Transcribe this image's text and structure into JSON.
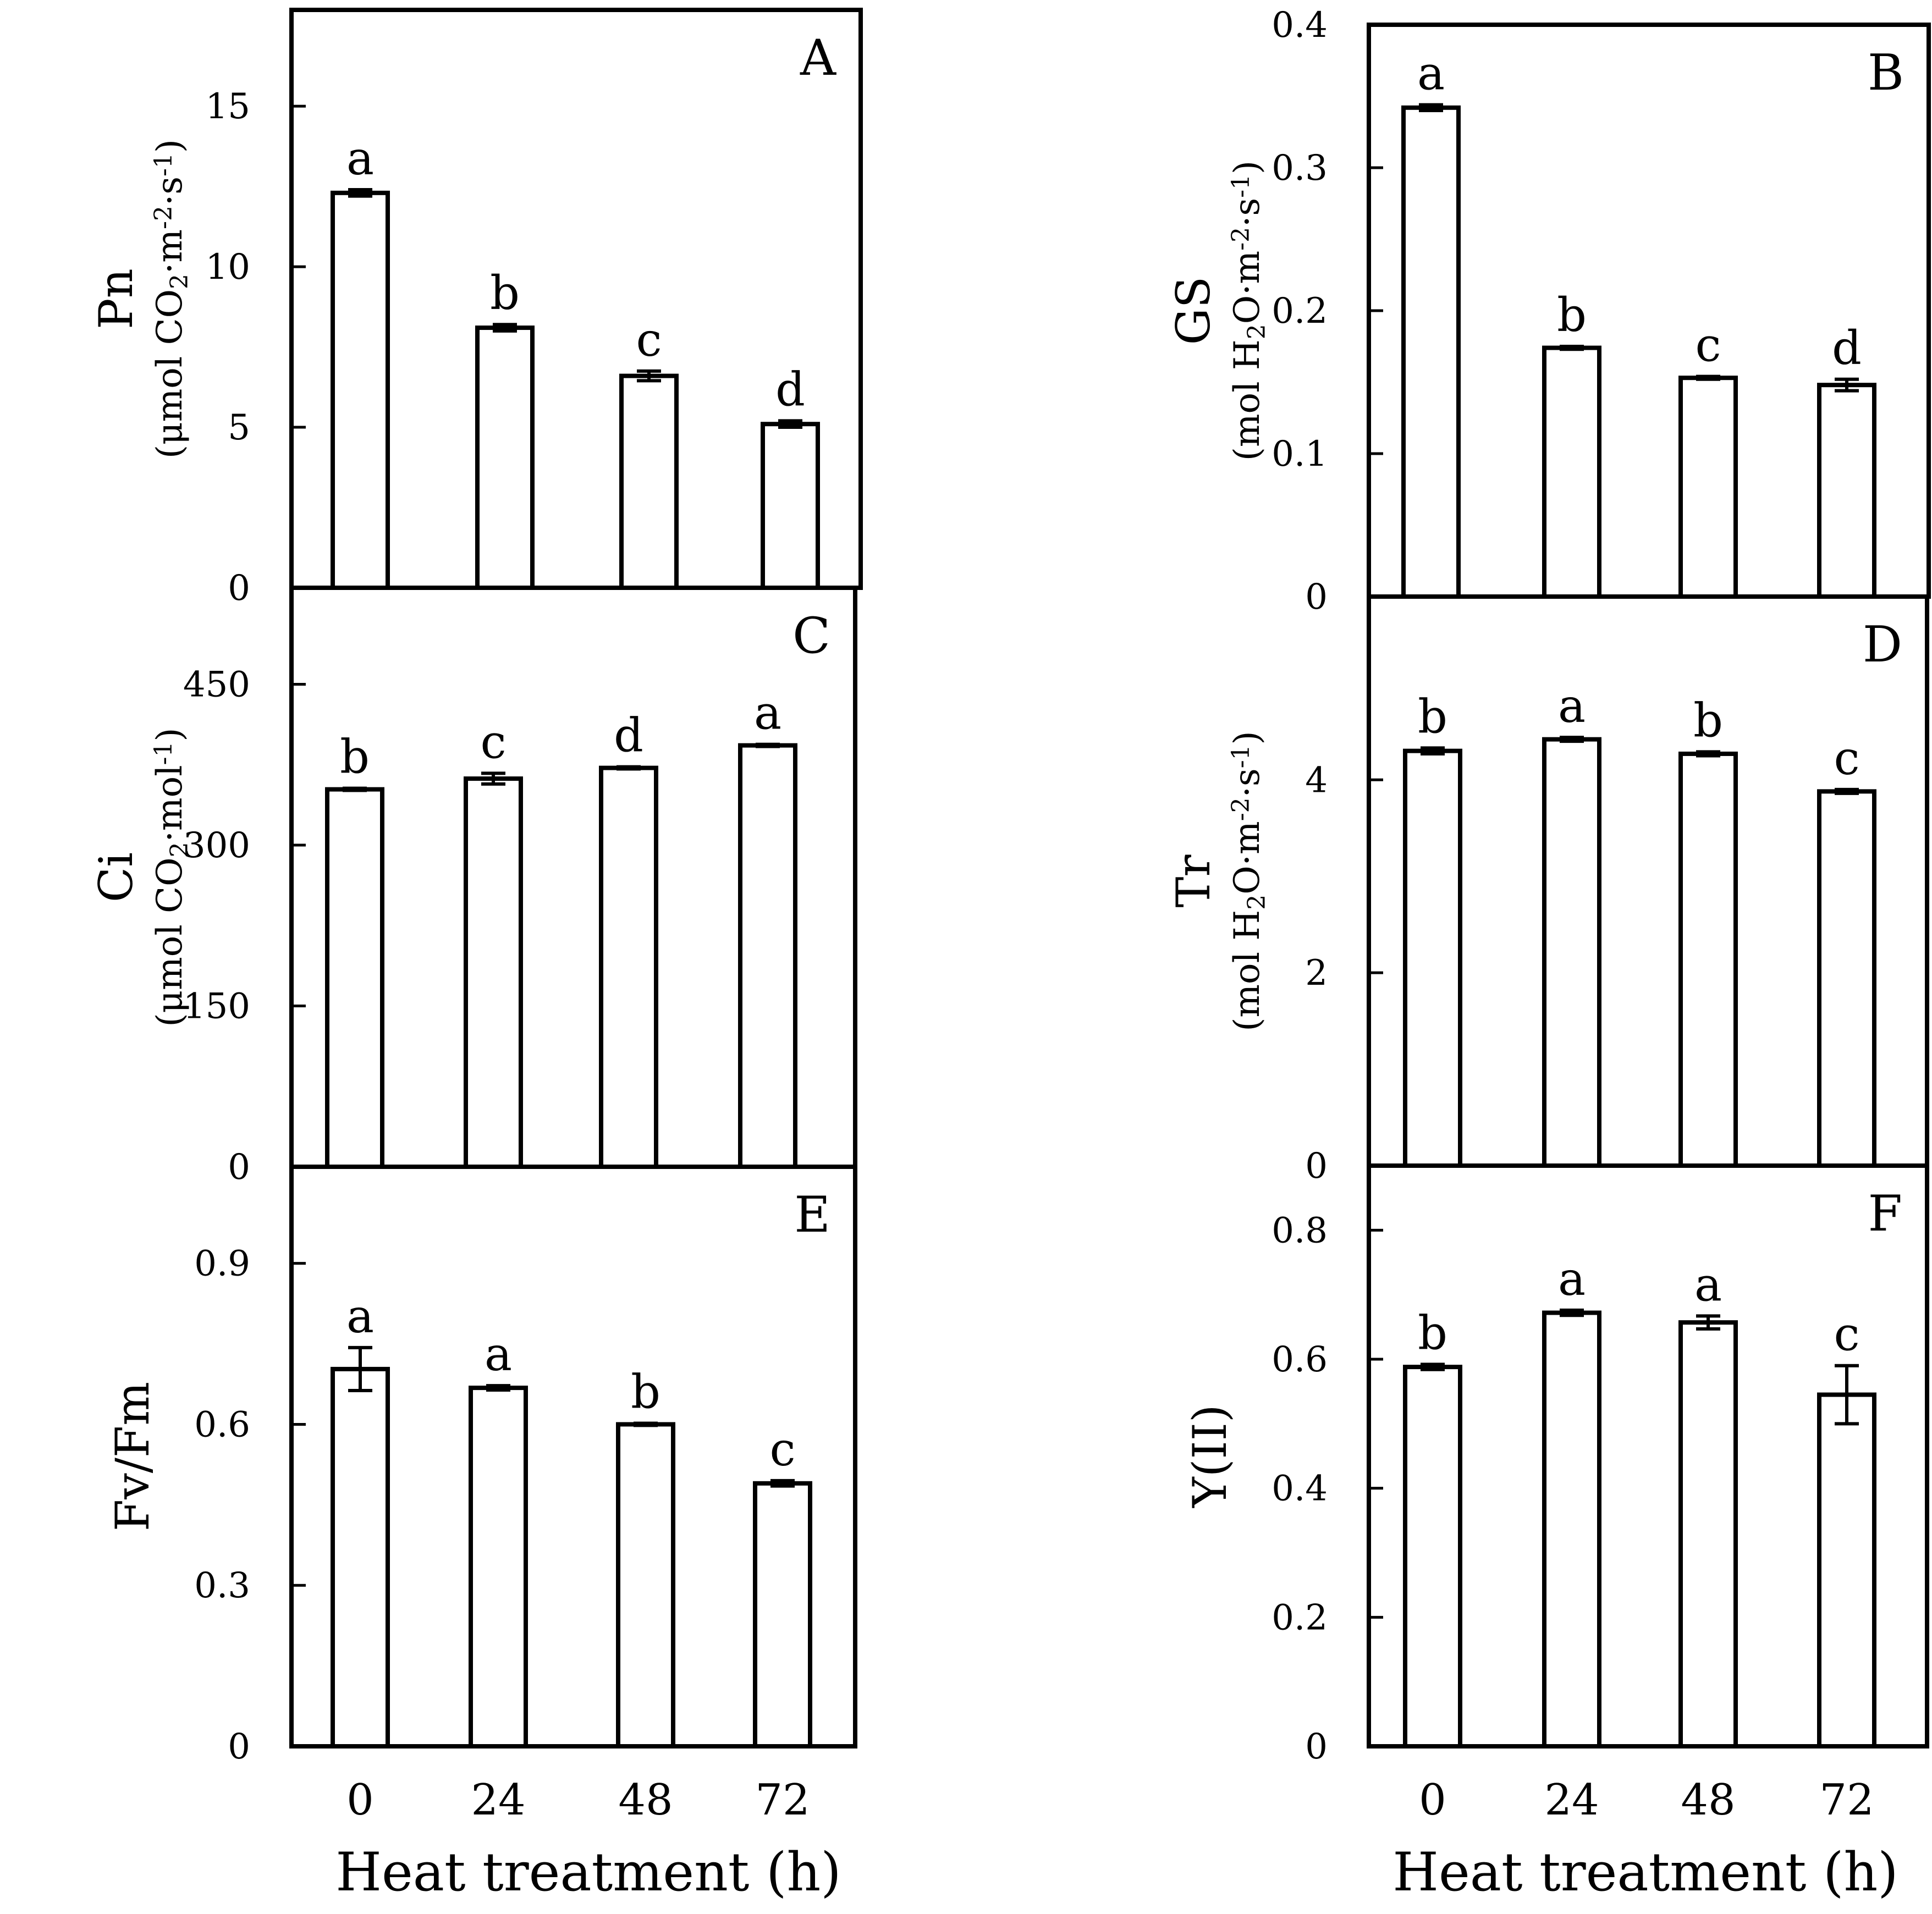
{
  "chart_data": [
    {
      "type": "bar",
      "panel": "A",
      "ylabel": "Pn",
      "yunit": [
        "(μmol CO",
        "2",
        "·m",
        "-2",
        "·s",
        "-1",
        ")"
      ],
      "ylim": [
        0,
        18
      ],
      "yticks": [
        "0",
        "5",
        "10",
        "15"
      ],
      "ytick_values": [
        0,
        5,
        10,
        15
      ],
      "categories": [
        "0",
        "24",
        "48",
        "72"
      ],
      "values": [
        12.3,
        8.1,
        6.6,
        5.1
      ],
      "errors": [
        0.1,
        0.1,
        0.15,
        0.1
      ],
      "letters": [
        "a",
        "b",
        "c",
        "d"
      ]
    },
    {
      "type": "bar",
      "panel": "B",
      "ylabel": "GS",
      "yunit": [
        "(mol H",
        "2",
        "O·m",
        "-2",
        "·s",
        "-1",
        ")"
      ],
      "ylim": [
        0,
        0.4
      ],
      "yticks": [
        "0",
        "0.1",
        "0.2",
        "0.3",
        "0.4"
      ],
      "ytick_values": [
        0,
        0.1,
        0.2,
        0.3,
        0.4
      ],
      "categories": [
        "0",
        "24",
        "48",
        "72"
      ],
      "values": [
        0.342,
        0.174,
        0.153,
        0.148
      ],
      "errors": [
        0.002,
        0.001,
        0.001,
        0.004
      ],
      "letters": [
        "a",
        "b",
        "c",
        "d"
      ]
    },
    {
      "type": "bar",
      "panel": "C",
      "ylabel": "Ci",
      "yunit": [
        "(μmol CO",
        "2",
        "·mol",
        "-1",
        ")"
      ],
      "ylim": [
        0,
        540
      ],
      "yticks": [
        "0",
        "150",
        "300",
        "450"
      ],
      "ytick_values": [
        0,
        150,
        300,
        450
      ],
      "categories": [
        "0",
        "24",
        "48",
        "72"
      ],
      "values": [
        352,
        362,
        372,
        393
      ],
      "errors": [
        1,
        5,
        1,
        1
      ],
      "letters": [
        "b",
        "c",
        "d",
        "a"
      ]
    },
    {
      "type": "bar",
      "panel": "D",
      "ylabel": "Tr",
      "yunit": [
        "(mol H",
        "2",
        "O·m",
        "-2",
        "·s",
        "-1",
        ")"
      ],
      "ylim": [
        0,
        5.9
      ],
      "yticks": [
        "0",
        "2",
        "4"
      ],
      "ytick_values": [
        0,
        2,
        4
      ],
      "categories": [
        "0",
        "24",
        "48",
        "72"
      ],
      "values": [
        4.3,
        4.42,
        4.27,
        3.88
      ],
      "errors": [
        0.03,
        0.02,
        0.02,
        0.02
      ],
      "letters": [
        "b",
        "a",
        "b",
        "c"
      ]
    },
    {
      "type": "bar",
      "panel": "E",
      "ylabel": "Fv/Fm",
      "yunit": [],
      "ylim": [
        0,
        1.08
      ],
      "yticks": [
        "0",
        "0.3",
        "0.6",
        "0.9"
      ],
      "ytick_values": [
        0,
        0.3,
        0.6,
        0.9
      ],
      "categories": [
        "0",
        "24",
        "48",
        "72"
      ],
      "values": [
        0.703,
        0.668,
        0.6,
        0.49
      ],
      "errors": [
        0.04,
        0.004,
        0.002,
        0.005
      ],
      "letters": [
        "a",
        "a",
        "b",
        "c"
      ]
    },
    {
      "type": "bar",
      "panel": "F",
      "ylabel": "Y(II)",
      "yunit": [],
      "ylim": [
        0,
        0.9
      ],
      "yticks": [
        "0",
        "0.2",
        "0.4",
        "0.6",
        "0.8"
      ],
      "ytick_values": [
        0,
        0.2,
        0.4,
        0.6,
        0.8
      ],
      "categories": [
        "0",
        "24",
        "48",
        "72"
      ],
      "values": [
        0.588,
        0.672,
        0.657,
        0.545
      ],
      "errors": [
        0.004,
        0.004,
        0.01,
        0.045
      ],
      "letters": [
        "b",
        "a",
        "a",
        "c"
      ]
    }
  ],
  "xlabel": "Heat treatment (h)"
}
